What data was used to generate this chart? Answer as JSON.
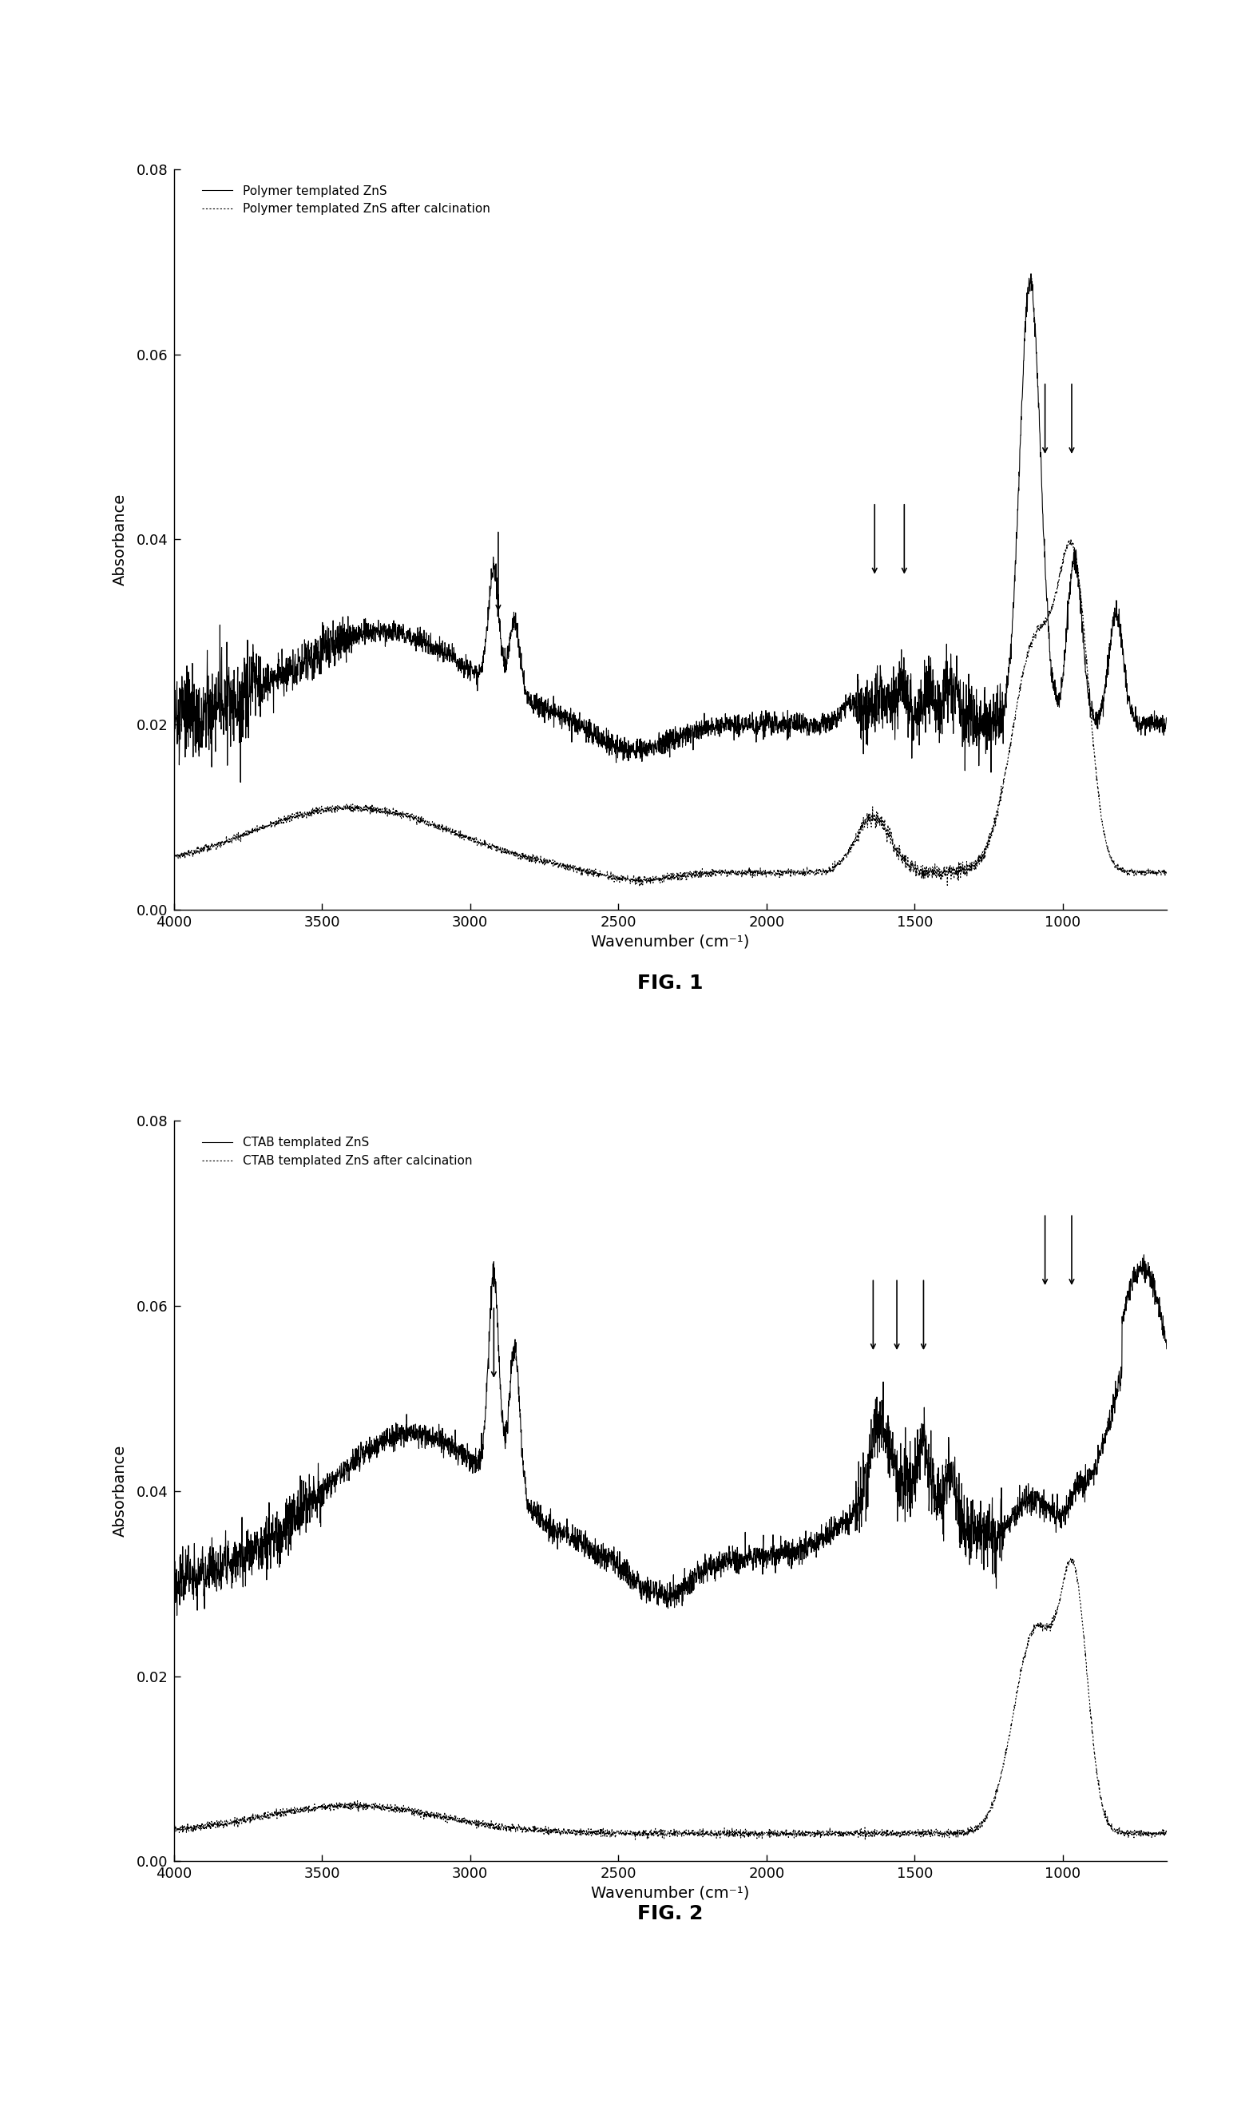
{
  "fig1": {
    "title": "FIG. 1",
    "legend1": "Polymer templated ZnS",
    "legend2": "Polymer templated ZnS after calcination",
    "xlabel": "Wavenumber (cm⁻¹)",
    "ylabel": "Absorbance",
    "xlim_left": 4000,
    "xlim_right": 650,
    "ylim": [
      0.0,
      0.08
    ],
    "yticks": [
      0.0,
      0.02,
      0.04,
      0.06,
      0.08
    ],
    "xticks": [
      4000,
      3500,
      3000,
      2500,
      2000,
      1500,
      1000
    ]
  },
  "fig2": {
    "title": "FIG. 2",
    "legend1": "CTAB templated ZnS",
    "legend2": "CTAB templated ZnS after calcination",
    "xlabel": "Wavenumber (cm⁻¹)",
    "ylabel": "Absorbance",
    "xlim_left": 4000,
    "xlim_right": 650,
    "ylim": [
      0.0,
      0.08
    ],
    "yticks": [
      0.0,
      0.02,
      0.04,
      0.06,
      0.08
    ],
    "xticks": [
      4000,
      3500,
      3000,
      2500,
      2000,
      1500,
      1000
    ]
  },
  "background_color": "#ffffff",
  "line_color": "#000000"
}
